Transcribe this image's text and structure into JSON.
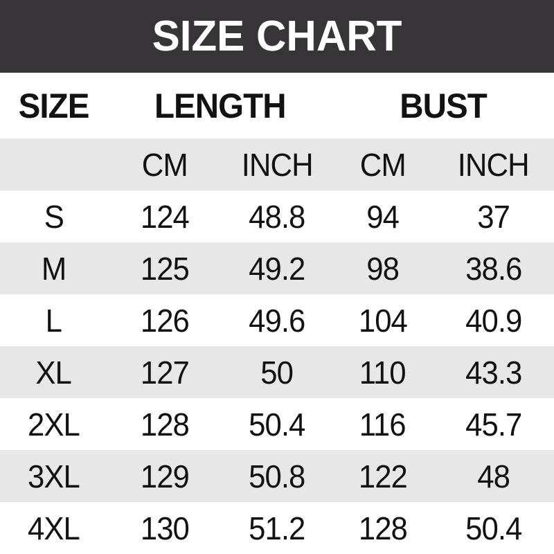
{
  "banner": {
    "title": "SIZE CHART",
    "bg_color": "#373537",
    "text_color": "#ffffff"
  },
  "chart_data": {
    "type": "table",
    "title": "SIZE CHART",
    "group_headers": [
      {
        "label": "SIZE",
        "span": 1
      },
      {
        "label": "LENGTH",
        "span": 2
      },
      {
        "label": "BUST",
        "span": 2
      }
    ],
    "unit_headers": [
      "",
      "CM",
      "INCH",
      "CM",
      "INCH"
    ],
    "columns": [
      "SIZE",
      "LENGTH CM",
      "LENGTH INCH",
      "BUST CM",
      "BUST INCH"
    ],
    "rows": [
      [
        "S",
        "124",
        "48.8",
        "94",
        "37"
      ],
      [
        "M",
        "125",
        "49.2",
        "98",
        "38.6"
      ],
      [
        "L",
        "126",
        "49.6",
        "104",
        "40.9"
      ],
      [
        "XL",
        "127",
        "50",
        "110",
        "43.3"
      ],
      [
        "2XL",
        "128",
        "50.4",
        "116",
        "45.7"
      ],
      [
        "3XL",
        "129",
        "50.8",
        "122",
        "48"
      ],
      [
        "4XL",
        "130",
        "51.2",
        "128",
        "50.4"
      ]
    ],
    "layout": {
      "striped": true,
      "stripe_color": "#e8e7e8",
      "base_color": "#ffffff",
      "text_color": "#121212",
      "grid": false
    }
  }
}
